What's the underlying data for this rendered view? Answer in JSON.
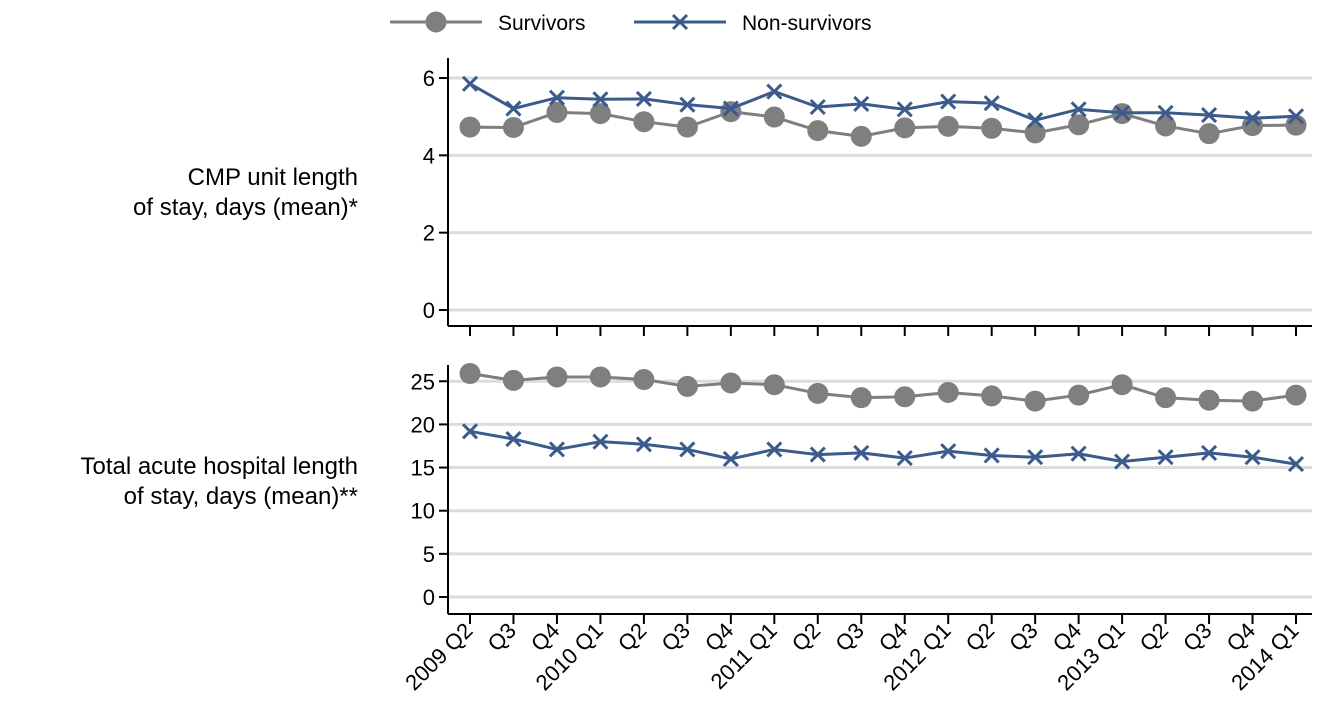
{
  "chart_data": {
    "type": "line",
    "legend": {
      "placement": "top",
      "entries": [
        {
          "name": "Survivors",
          "marker": "circle",
          "color": "#7f7f7f"
        },
        {
          "name": "Non-survivors",
          "marker": "x",
          "color": "#3b5b8c"
        }
      ]
    },
    "x_tick_labels": [
      "2009 Q2",
      "Q3",
      "Q4",
      "2010 Q1",
      "Q2",
      "Q3",
      "Q4",
      "2011 Q1",
      "Q2",
      "Q3",
      "Q4",
      "2012 Q1",
      "Q2",
      "Q3",
      "Q4",
      "2013 Q1",
      "Q2",
      "Q3",
      "Q4",
      "2014 Q1"
    ],
    "panels": [
      {
        "id": "cmp",
        "label_lines": [
          "CMP unit length",
          "of stay, days (mean)*"
        ],
        "ylim": [
          0,
          6
        ],
        "yticks": [
          0,
          2,
          4,
          6
        ],
        "grid": true,
        "series": [
          {
            "name": "Survivors",
            "values": [
              4.73,
              4.72,
              5.11,
              5.08,
              4.87,
              4.73,
              5.13,
              4.99,
              4.64,
              4.49,
              4.71,
              4.75,
              4.7,
              4.58,
              4.79,
              5.08,
              4.76,
              4.56,
              4.77,
              4.78
            ]
          },
          {
            "name": "Non-survivors",
            "values": [
              5.85,
              5.21,
              5.49,
              5.45,
              5.46,
              5.31,
              5.21,
              5.65,
              5.25,
              5.33,
              5.19,
              5.39,
              5.35,
              4.91,
              5.19,
              5.1,
              5.1,
              5.04,
              4.96,
              5.01
            ]
          }
        ]
      },
      {
        "id": "hospital",
        "label_lines": [
          "Total acute hospital length",
          "of stay, days (mean)**"
        ],
        "ylim": [
          0,
          27
        ],
        "yticks": [
          0,
          5,
          10,
          15,
          20,
          25
        ],
        "grid": true,
        "series": [
          {
            "name": "Survivors",
            "values": [
              25.9,
              25.1,
              25.5,
              25.5,
              25.2,
              24.4,
              24.8,
              24.6,
              23.6,
              23.1,
              23.2,
              23.7,
              23.3,
              22.7,
              23.4,
              24.6,
              23.1,
              22.8,
              22.7,
              23.4
            ]
          },
          {
            "name": "Non-survivors",
            "values": [
              19.2,
              18.3,
              17.1,
              18.0,
              17.7,
              17.1,
              16.0,
              17.1,
              16.5,
              16.7,
              16.1,
              16.9,
              16.4,
              16.2,
              16.6,
              15.7,
              16.2,
              16.7,
              16.2,
              15.4
            ]
          }
        ]
      }
    ]
  }
}
